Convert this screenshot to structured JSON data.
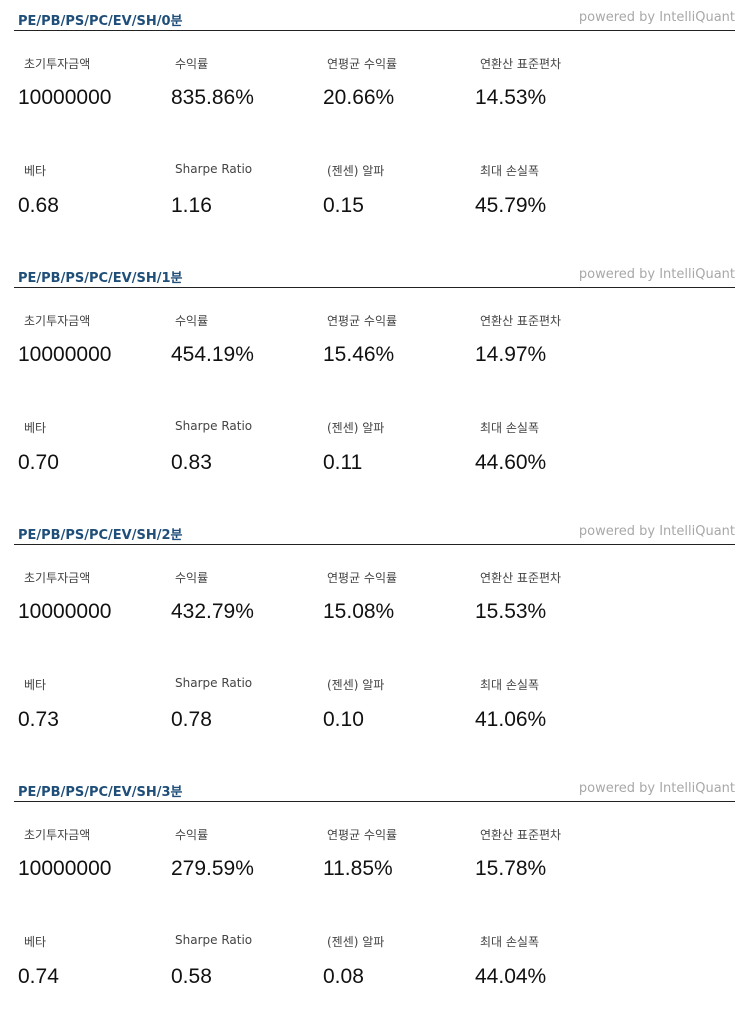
{
  "panels": [
    {
      "title": "PE/PB/PS/PC/EV/SH/0분",
      "powered_by": "powered by IntelliQuant",
      "metrics": [
        {
          "label": "초기투자금액",
          "value": "10000000"
        },
        {
          "label": "수익률",
          "value": "835.86%"
        },
        {
          "label": "연평균 수익률",
          "value": "20.66%"
        },
        {
          "label": "연환산 표준편차",
          "value": "14.53%"
        },
        {
          "label": "베타",
          "value": "0.68"
        },
        {
          "label": "Sharpe Ratio",
          "value": "1.16"
        },
        {
          "label": "(젠센) 알파",
          "value": "0.15"
        },
        {
          "label": "최대 손실폭",
          "value": "45.79%"
        }
      ]
    },
    {
      "title": "PE/PB/PS/PC/EV/SH/1분",
      "powered_by": "powered by IntelliQuant",
      "metrics": [
        {
          "label": "초기투자금액",
          "value": "10000000"
        },
        {
          "label": "수익률",
          "value": "454.19%"
        },
        {
          "label": "연평균 수익률",
          "value": "15.46%"
        },
        {
          "label": "연환산 표준편차",
          "value": "14.97%"
        },
        {
          "label": "베타",
          "value": "0.70"
        },
        {
          "label": "Sharpe Ratio",
          "value": "0.83"
        },
        {
          "label": "(젠센) 알파",
          "value": "0.11"
        },
        {
          "label": "최대 손실폭",
          "value": "44.60%"
        }
      ]
    },
    {
      "title": "PE/PB/PS/PC/EV/SH/2분",
      "powered_by": "powered by IntelliQuant",
      "metrics": [
        {
          "label": "초기투자금액",
          "value": "10000000"
        },
        {
          "label": "수익률",
          "value": "432.79%"
        },
        {
          "label": "연평균 수익률",
          "value": "15.08%"
        },
        {
          "label": "연환산 표준편차",
          "value": "15.53%"
        },
        {
          "label": "베타",
          "value": "0.73"
        },
        {
          "label": "Sharpe Ratio",
          "value": "0.78"
        },
        {
          "label": "(젠센) 알파",
          "value": "0.10"
        },
        {
          "label": "최대 손실폭",
          "value": "41.06%"
        }
      ]
    },
    {
      "title": "PE/PB/PS/PC/EV/SH/3분",
      "powered_by": "powered by IntelliQuant",
      "metrics": [
        {
          "label": "초기투자금액",
          "value": "10000000"
        },
        {
          "label": "수익률",
          "value": "279.59%"
        },
        {
          "label": "연평균 수익률",
          "value": "11.85%"
        },
        {
          "label": "연환산 표준편차",
          "value": "15.78%"
        },
        {
          "label": "베타",
          "value": "0.74"
        },
        {
          "label": "Sharpe Ratio",
          "value": "0.58"
        },
        {
          "label": "(젠센) 알파",
          "value": "0.08"
        },
        {
          "label": "최대 손실폭",
          "value": "44.04%"
        }
      ]
    }
  ]
}
